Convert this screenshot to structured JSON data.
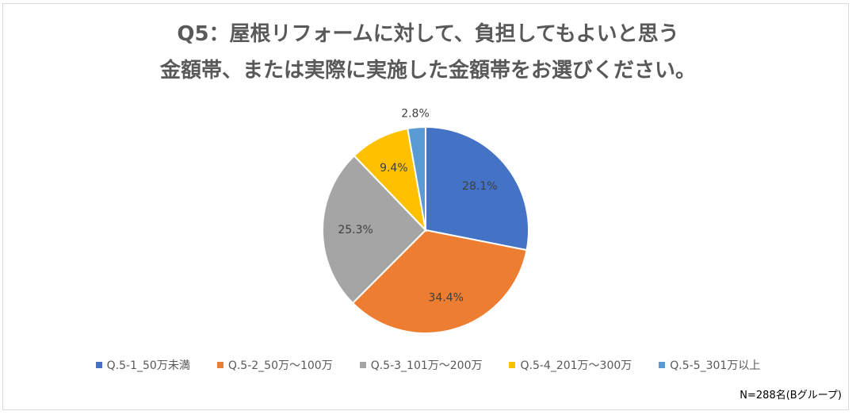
{
  "chart_data": {
    "type": "pie",
    "title_line1": "Q5：屋根リフォームに対して、負担してもよいと思う",
    "title_line2": "金額帯、または実際に実施した金額帯をお選びください。",
    "categories": [
      "Q.5-1_50万未満",
      "Q.5-2_50万～100万",
      "Q.5-3_101万～200万",
      "Q.5-4_201万～300万",
      "Q.5-5_301万以上"
    ],
    "values": [
      28.1,
      34.4,
      25.3,
      9.4,
      2.8
    ],
    "labels": [
      "28.1%",
      "34.4%",
      "25.3%",
      "9.4%",
      "2.8%"
    ],
    "colors": [
      "#4472C4",
      "#ED7D31",
      "#A5A5A5",
      "#FFC000",
      "#5B9BD5"
    ],
    "legend_position": "bottom"
  },
  "note": "N=288名(Bグループ)"
}
